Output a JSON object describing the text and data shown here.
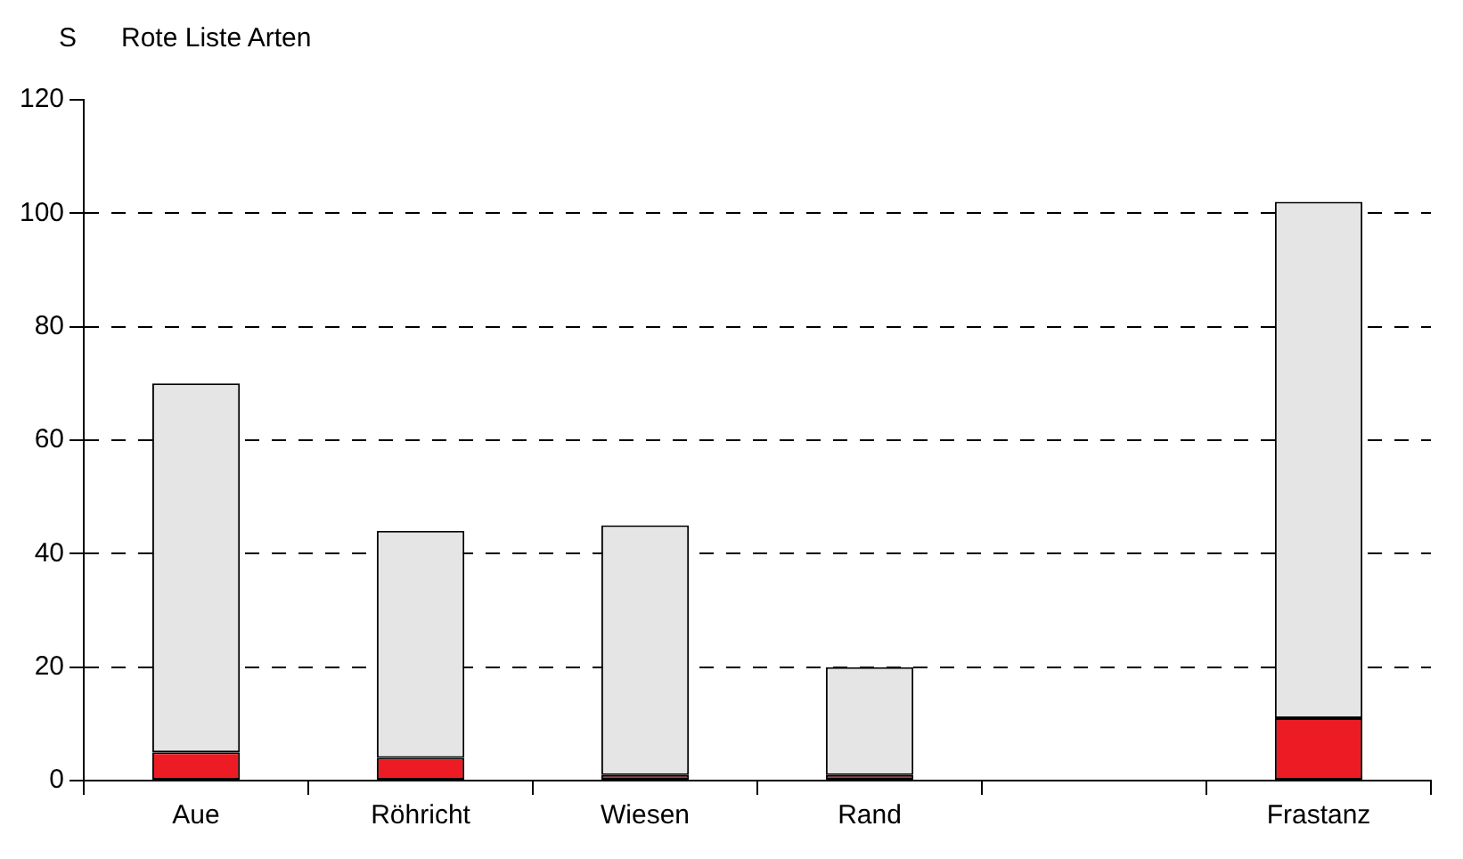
{
  "chart_data": {
    "type": "bar",
    "title": "Rote Liste Arten",
    "ylabel": "S",
    "categories": [
      "Aue",
      "Röhricht",
      "Wiesen",
      "Rand",
      null,
      "Frastanz"
    ],
    "stacked": true,
    "series": [
      {
        "color": "#ed1c24",
        "values": [
          5,
          4,
          1,
          1,
          null,
          11
        ]
      },
      {
        "color": "#e5e5e5",
        "values": [
          65,
          40,
          44,
          19,
          null,
          91
        ]
      }
    ],
    "ylim": [
      0,
      120
    ],
    "yticks": [
      0,
      20,
      40,
      60,
      80,
      100,
      120
    ],
    "grid": "y"
  }
}
